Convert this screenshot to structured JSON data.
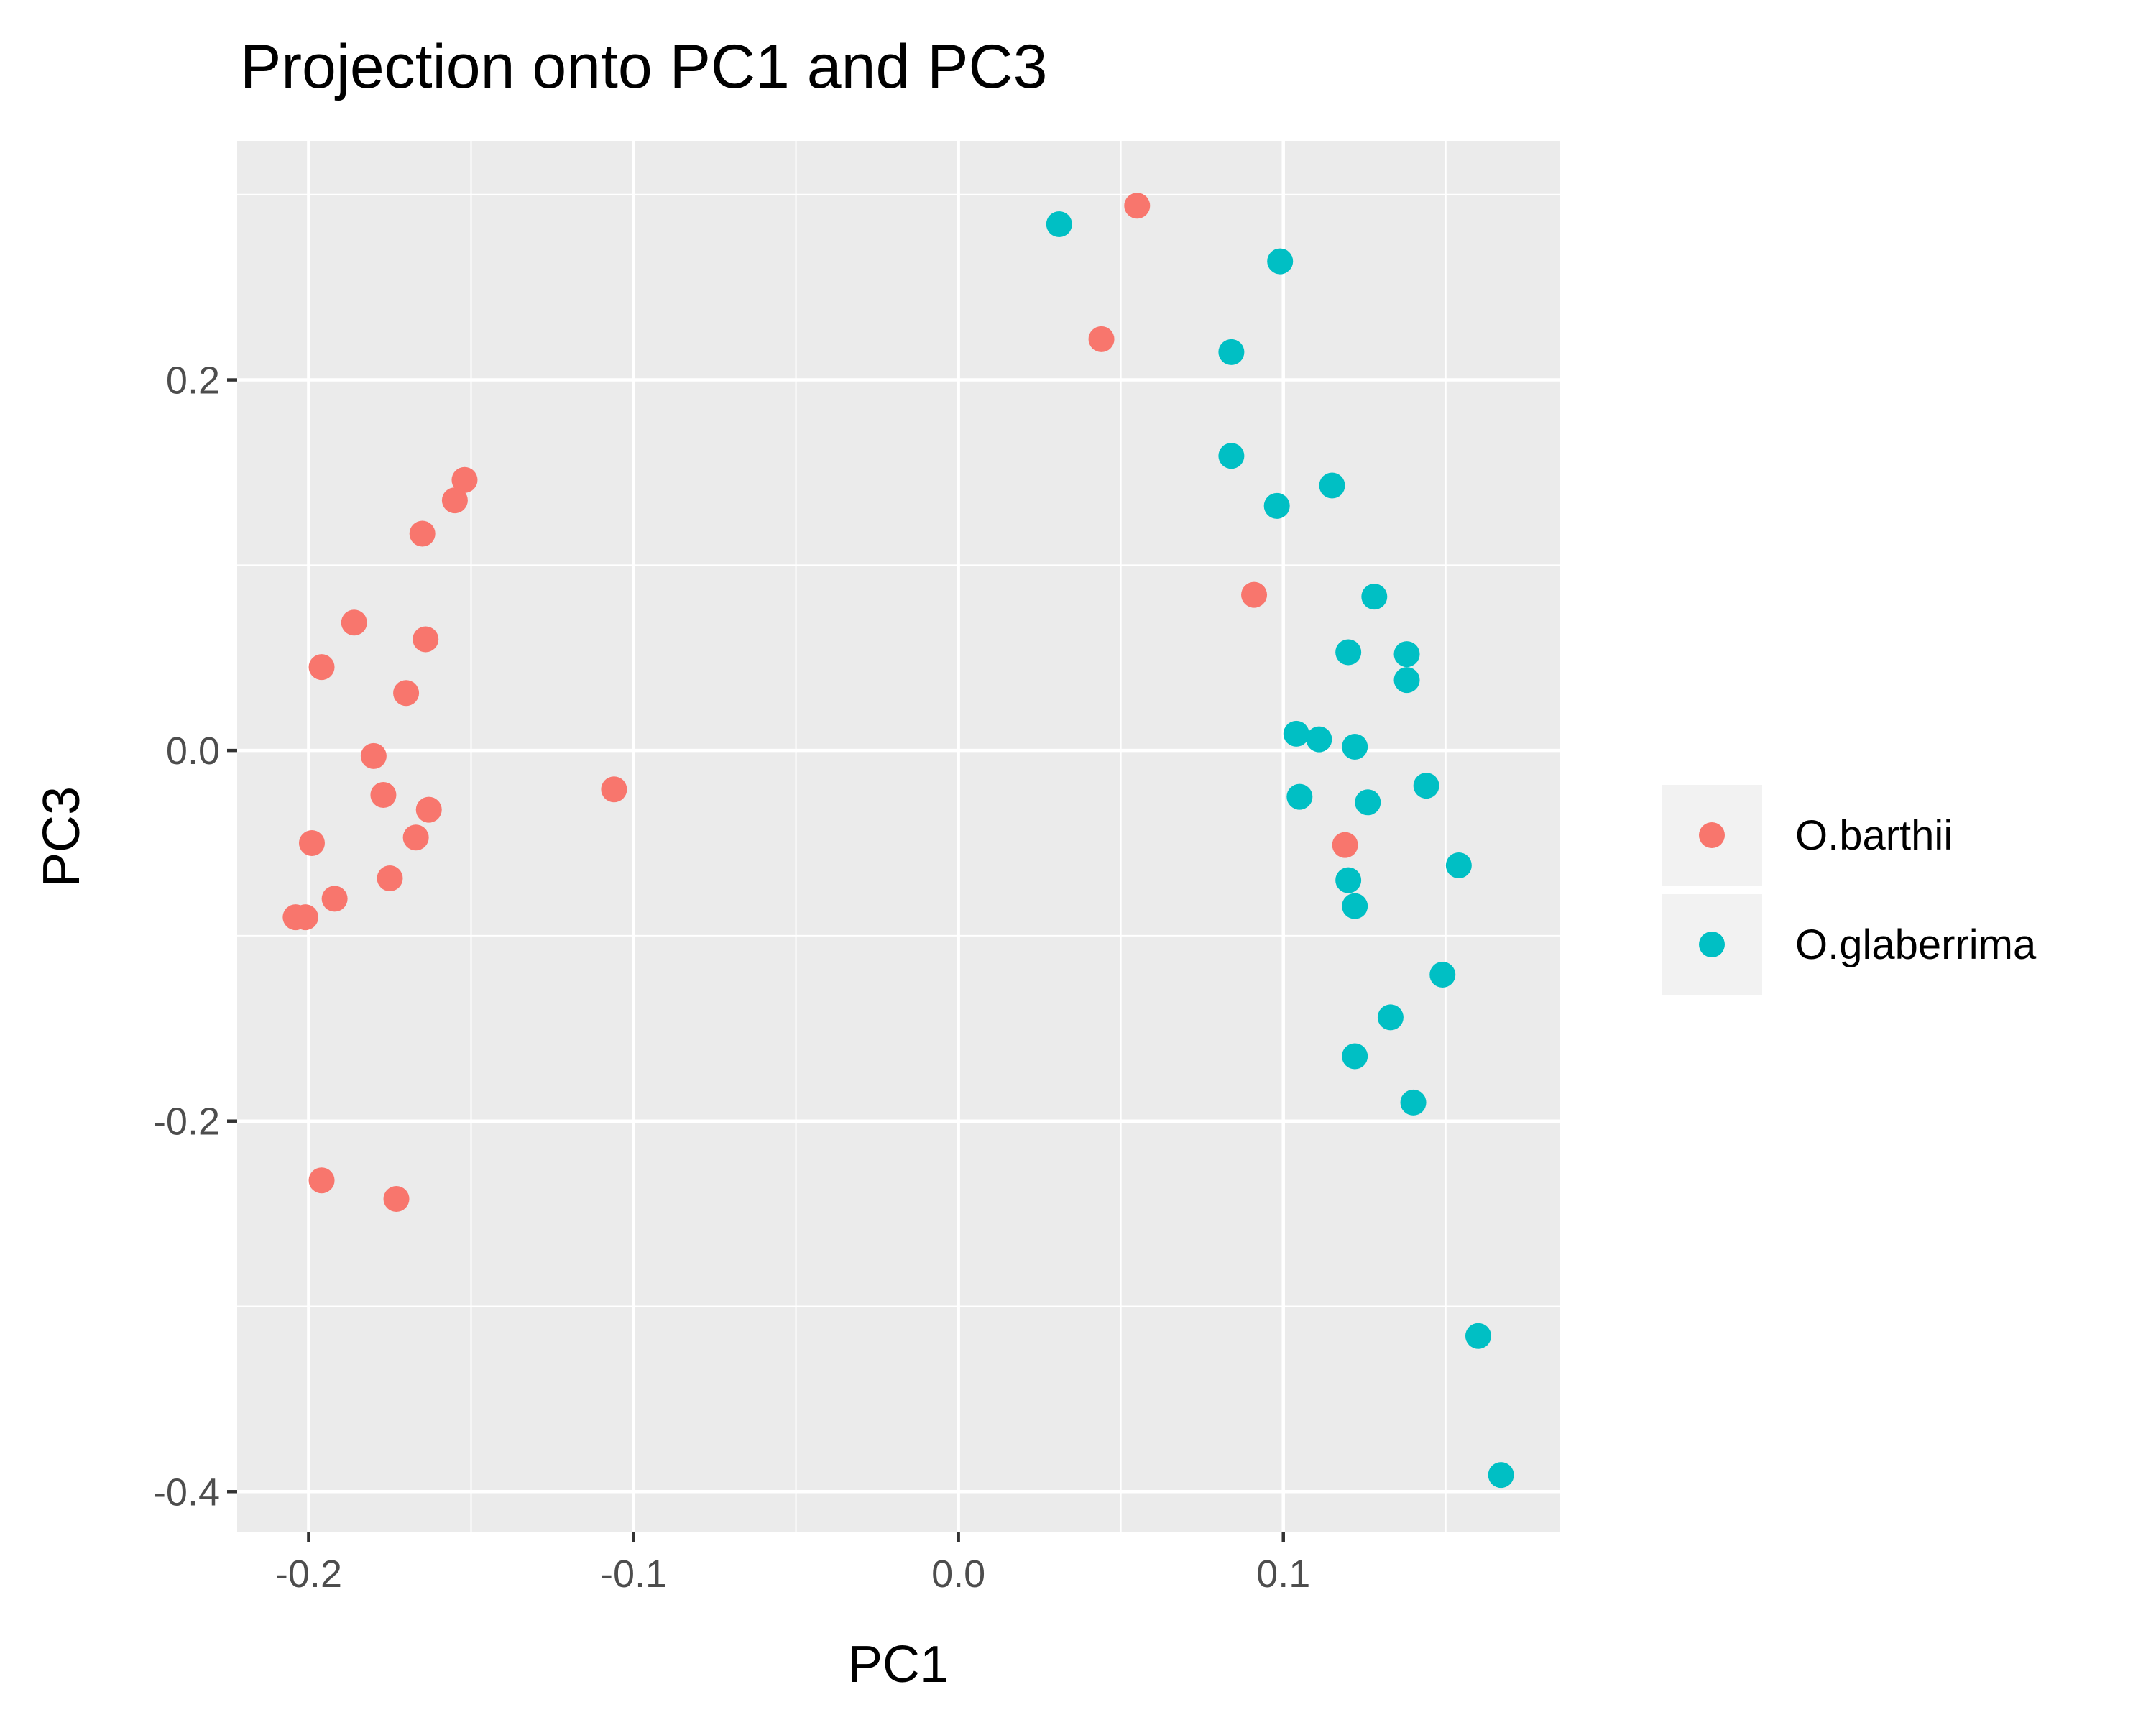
{
  "chart_data": {
    "type": "scatter",
    "title": "Projection onto PC1 and PC3",
    "xlabel": "PC1",
    "ylabel": "PC3",
    "xlim": [
      -0.222,
      0.185
    ],
    "ylim": [
      -0.422,
      0.329
    ],
    "x_ticks": [
      {
        "value": -0.2,
        "label": "-0.2"
      },
      {
        "value": -0.1,
        "label": "-0.1"
      },
      {
        "value": 0.0,
        "label": "0.0"
      },
      {
        "value": 0.1,
        "label": "0.1"
      }
    ],
    "y_ticks": [
      {
        "value": 0.2,
        "label": "0.2"
      },
      {
        "value": 0.0,
        "label": "0.0"
      },
      {
        "value": -0.2,
        "label": "-0.2"
      },
      {
        "value": -0.4,
        "label": "-0.4"
      }
    ],
    "grid": true,
    "legend_position": "right",
    "panel_background": "#ebebeb",
    "series": [
      {
        "name": "O.barthii",
        "color": "#f8766d",
        "points": [
          [
            0.055,
            0.294
          ],
          [
            0.044,
            0.222
          ],
          [
            0.091,
            0.084
          ],
          [
            0.119,
            -0.051
          ],
          [
            -0.152,
            0.146
          ],
          [
            -0.155,
            0.135
          ],
          [
            -0.165,
            0.117
          ],
          [
            -0.186,
            0.069
          ],
          [
            -0.164,
            0.06
          ],
          [
            -0.196,
            0.045
          ],
          [
            -0.17,
            0.031
          ],
          [
            -0.18,
            -0.003
          ],
          [
            -0.177,
            -0.024
          ],
          [
            -0.163,
            -0.032
          ],
          [
            -0.106,
            -0.021
          ],
          [
            -0.199,
            -0.05
          ],
          [
            -0.167,
            -0.047
          ],
          [
            -0.175,
            -0.069
          ],
          [
            -0.192,
            -0.08
          ],
          [
            -0.204,
            -0.09
          ],
          [
            -0.201,
            -0.09
          ],
          [
            -0.196,
            -0.232
          ],
          [
            -0.173,
            -0.242
          ]
        ]
      },
      {
        "name": "O.glaberrima",
        "color": "#00bfc4",
        "points": [
          [
            0.031,
            0.284
          ],
          [
            0.099,
            0.264
          ],
          [
            0.084,
            0.215
          ],
          [
            0.084,
            0.159
          ],
          [
            0.115,
            0.143
          ],
          [
            0.098,
            0.132
          ],
          [
            0.128,
            0.083
          ],
          [
            0.12,
            0.053
          ],
          [
            0.138,
            0.052
          ],
          [
            0.138,
            0.038
          ],
          [
            0.104,
            0.009
          ],
          [
            0.111,
            0.006
          ],
          [
            0.122,
            0.002
          ],
          [
            0.144,
            -0.019
          ],
          [
            0.105,
            -0.025
          ],
          [
            0.126,
            -0.028
          ],
          [
            0.154,
            -0.062
          ],
          [
            0.12,
            -0.07
          ],
          [
            0.122,
            -0.084
          ],
          [
            0.149,
            -0.121
          ],
          [
            0.133,
            -0.144
          ],
          [
            0.122,
            -0.165
          ],
          [
            0.14,
            -0.19
          ],
          [
            0.16,
            -0.316
          ],
          [
            0.167,
            -0.391
          ]
        ]
      }
    ]
  }
}
